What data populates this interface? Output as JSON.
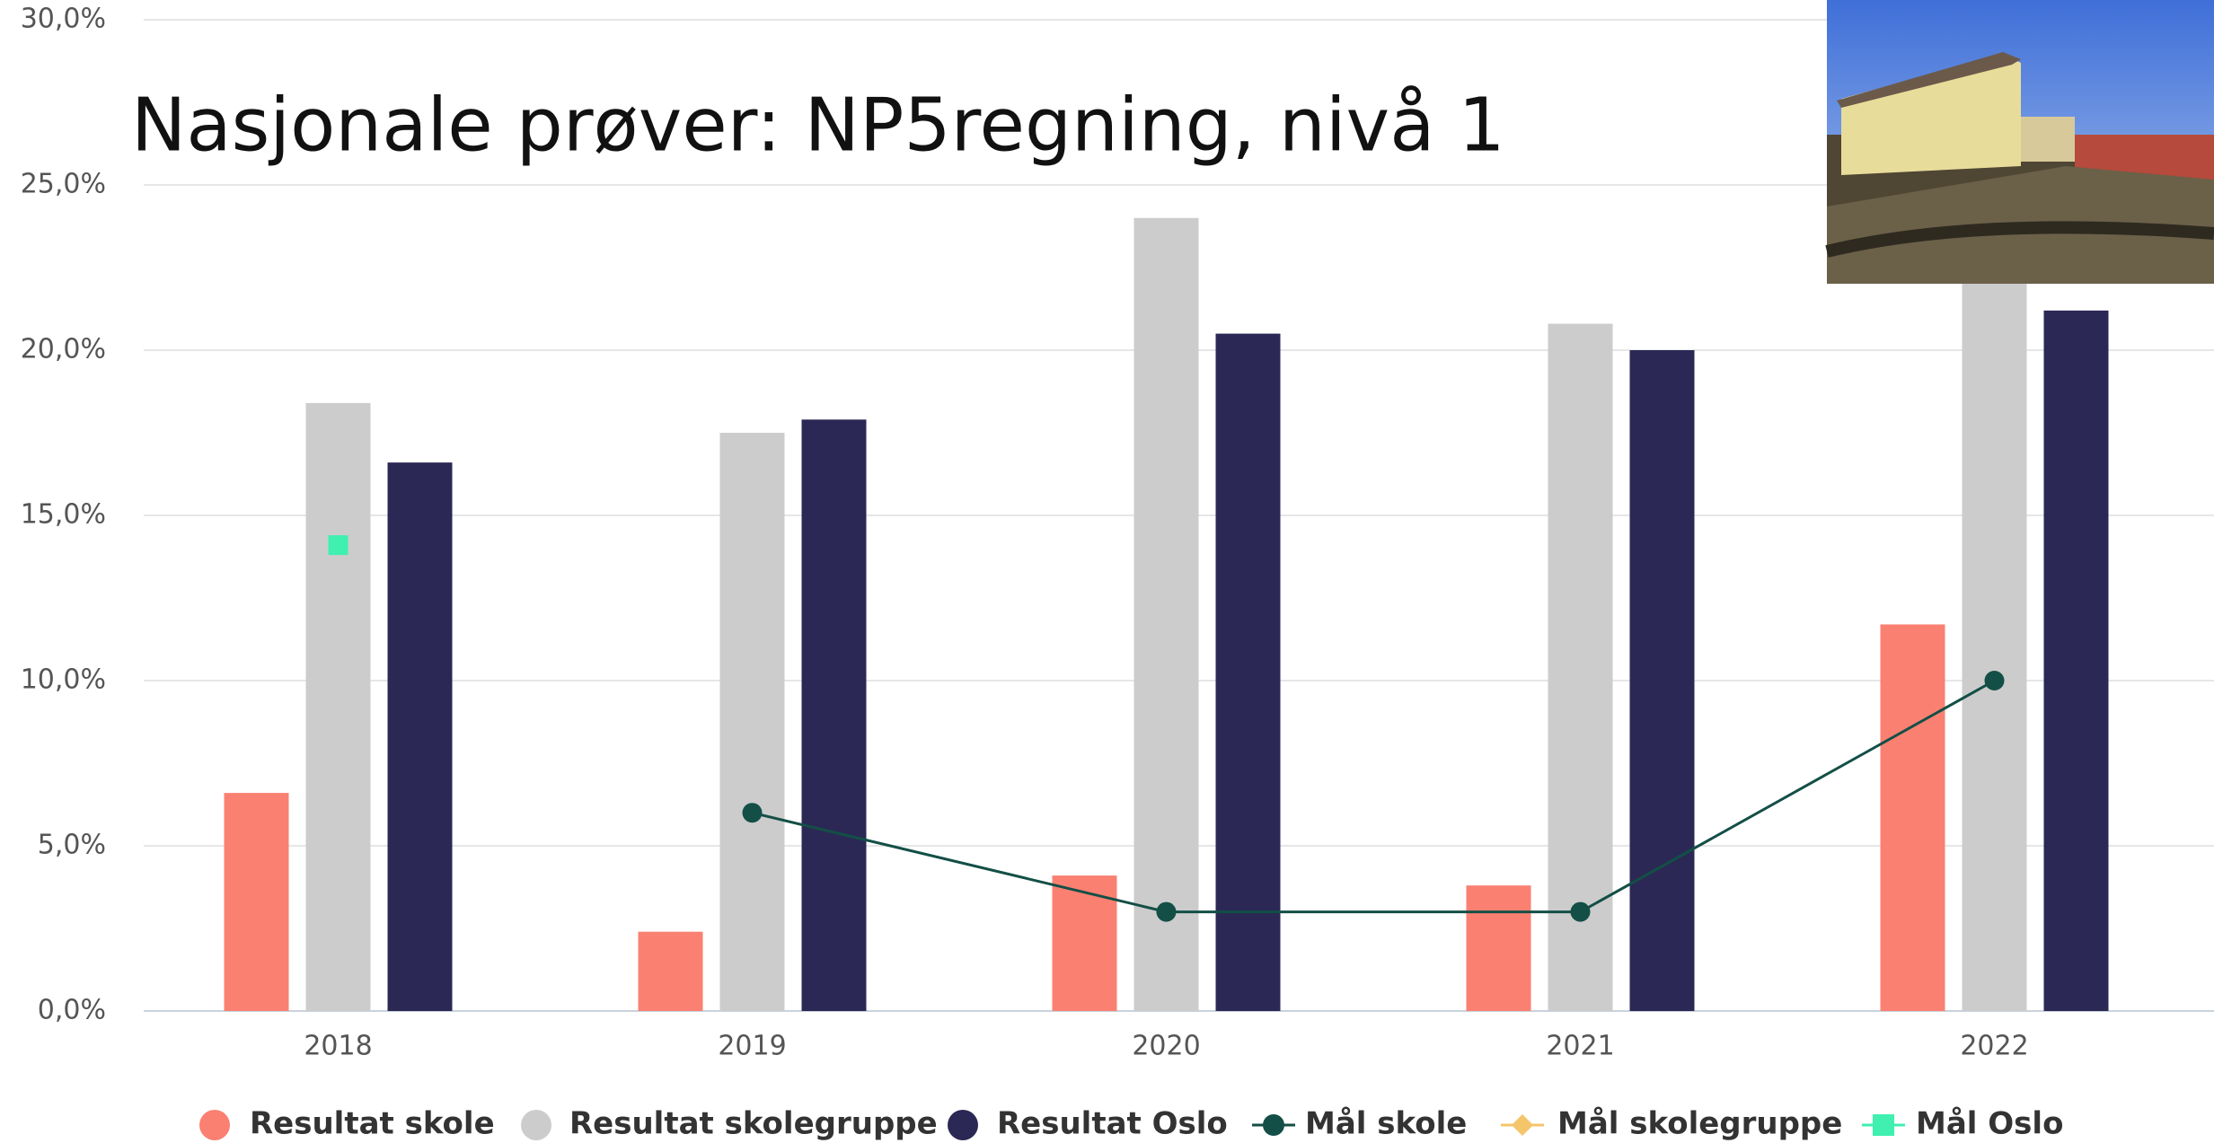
{
  "chart_data": {
    "type": "bar",
    "title": "Nasjonale prøver: NP5regning, nivå 1",
    "categories": [
      "2018",
      "2019",
      "2020",
      "2021",
      "2022"
    ],
    "series": [
      {
        "name": "Resultat skole",
        "type": "bar",
        "color": "#fa8072",
        "values": [
          6.6,
          2.4,
          4.1,
          3.8,
          11.7
        ]
      },
      {
        "name": "Resultat skolegruppe",
        "type": "bar",
        "color": "#cccccc",
        "values": [
          18.4,
          17.5,
          24.0,
          20.8,
          22.5
        ]
      },
      {
        "name": "Resultat Oslo",
        "type": "bar",
        "color": "#2b2855",
        "values": [
          16.6,
          17.9,
          20.5,
          20.0,
          21.2
        ]
      },
      {
        "name": "Mål skole",
        "type": "line",
        "marker": "circle",
        "color": "#134f46",
        "values": [
          null,
          6.0,
          3.0,
          3.0,
          10.0
        ]
      },
      {
        "name": "Mål skolegruppe",
        "type": "line",
        "marker": "diamond",
        "color": "#f4c56a",
        "values": [
          null,
          null,
          null,
          null,
          null
        ]
      },
      {
        "name": "Mål Oslo",
        "type": "line",
        "marker": "square",
        "color": "#3ff0b0",
        "values": [
          14.1,
          null,
          null,
          null,
          null
        ]
      }
    ],
    "ylim": [
      0,
      30
    ],
    "yticks": [
      {
        "value": 0,
        "label": "0,0%"
      },
      {
        "value": 5,
        "label": "5,0%"
      },
      {
        "value": 10,
        "label": "10,0%"
      },
      {
        "value": 15,
        "label": "15,0%"
      },
      {
        "value": 20,
        "label": "20,0%"
      },
      {
        "value": 25,
        "label": "25,0%"
      },
      {
        "value": 30,
        "label": "30,0%"
      }
    ],
    "grid": true
  }
}
